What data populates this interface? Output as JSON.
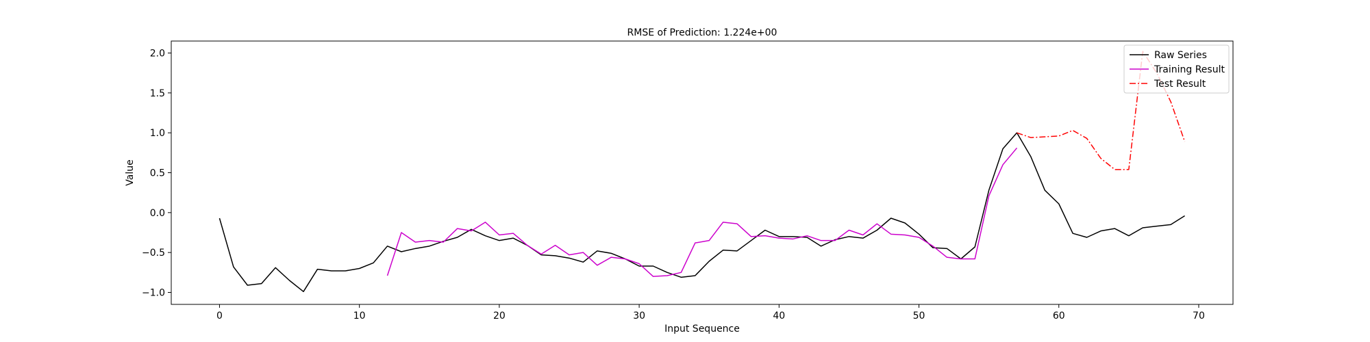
{
  "chart_data": {
    "type": "line",
    "title": "RMSE of Prediction: 1.224e+00",
    "xlabel": "Input Sequence",
    "ylabel": "Value",
    "xlim": [
      -3.45,
      72.45
    ],
    "ylim": [
      -1.15,
      2.15
    ],
    "xticks": [
      0,
      10,
      20,
      30,
      40,
      50,
      60,
      70
    ],
    "yticks": [
      -1.0,
      -0.5,
      0.0,
      0.5,
      1.0,
      1.5,
      2.0
    ],
    "xtick_labels": [
      "0",
      "10",
      "20",
      "30",
      "40",
      "50",
      "60",
      "70"
    ],
    "ytick_labels": [
      "−1.0",
      "−0.5",
      "0.0",
      "0.5",
      "1.0",
      "1.5",
      "2.0"
    ],
    "grid": false,
    "legend_position": "top-right",
    "series": [
      {
        "name": "Raw Series",
        "color": "#000000",
        "style": "solid",
        "x": [
          0,
          1,
          2,
          3,
          4,
          5,
          6,
          7,
          8,
          9,
          10,
          11,
          12,
          13,
          14,
          15,
          16,
          17,
          18,
          19,
          20,
          21,
          22,
          23,
          24,
          25,
          26,
          27,
          28,
          29,
          30,
          31,
          32,
          33,
          34,
          35,
          36,
          37,
          38,
          39,
          40,
          41,
          42,
          43,
          44,
          45,
          46,
          47,
          48,
          49,
          50,
          51,
          52,
          53,
          54,
          55,
          56,
          57,
          58,
          59,
          60,
          61,
          62,
          63,
          64,
          65,
          66,
          67,
          68,
          69
        ],
        "y": [
          -0.07,
          -0.68,
          -0.91,
          -0.89,
          -0.69,
          -0.85,
          -0.99,
          -0.71,
          -0.73,
          -0.73,
          -0.7,
          -0.63,
          -0.42,
          -0.49,
          -0.45,
          -0.42,
          -0.36,
          -0.31,
          -0.21,
          -0.29,
          -0.35,
          -0.32,
          -0.41,
          -0.53,
          -0.54,
          -0.57,
          -0.62,
          -0.48,
          -0.51,
          -0.58,
          -0.67,
          -0.67,
          -0.75,
          -0.81,
          -0.79,
          -0.61,
          -0.47,
          -0.48,
          -0.35,
          -0.22,
          -0.3,
          -0.3,
          -0.31,
          -0.42,
          -0.34,
          -0.3,
          -0.32,
          -0.22,
          -0.07,
          -0.13,
          -0.27,
          -0.44,
          -0.45,
          -0.58,
          -0.43,
          0.28,
          0.8,
          1.0,
          0.7,
          0.28,
          0.11,
          -0.26,
          -0.31,
          -0.23,
          -0.2,
          -0.29,
          -0.19,
          -0.17,
          -0.15,
          -0.04
        ]
      },
      {
        "name": "Training Result",
        "color": "#cc00cc",
        "style": "solid",
        "x": [
          12,
          13,
          14,
          15,
          16,
          17,
          18,
          19,
          20,
          21,
          22,
          23,
          24,
          25,
          26,
          27,
          28,
          29,
          30,
          31,
          32,
          33,
          34,
          35,
          36,
          37,
          38,
          39,
          40,
          41,
          42,
          43,
          44,
          45,
          46,
          47,
          48,
          49,
          50,
          51,
          52,
          53,
          54,
          55,
          56,
          57
        ],
        "y": [
          -0.79,
          -0.25,
          -0.37,
          -0.35,
          -0.37,
          -0.2,
          -0.23,
          -0.12,
          -0.28,
          -0.26,
          -0.41,
          -0.52,
          -0.41,
          -0.53,
          -0.5,
          -0.66,
          -0.56,
          -0.58,
          -0.64,
          -0.8,
          -0.79,
          -0.75,
          -0.38,
          -0.35,
          -0.12,
          -0.14,
          -0.3,
          -0.29,
          -0.32,
          -0.33,
          -0.29,
          -0.35,
          -0.35,
          -0.22,
          -0.28,
          -0.14,
          -0.27,
          -0.28,
          -0.31,
          -0.42,
          -0.56,
          -0.58,
          -0.58,
          0.21,
          0.6,
          0.81
        ]
      },
      {
        "name": "Test Result",
        "color": "#ff0000",
        "style": "dashdot",
        "x": [
          57,
          58,
          59,
          60,
          61,
          62,
          63,
          64,
          65,
          66,
          67,
          68,
          69
        ],
        "y": [
          1.0,
          0.94,
          0.95,
          0.96,
          1.03,
          0.93,
          0.68,
          0.54,
          0.54,
          2.02,
          1.75,
          1.39,
          0.89
        ]
      }
    ]
  }
}
